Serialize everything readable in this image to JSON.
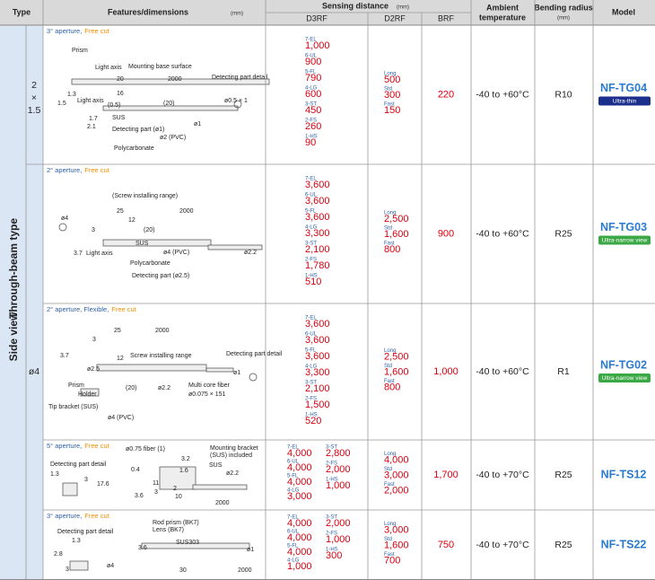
{
  "header": {
    "type": "Type",
    "features": "Features/dimensions",
    "features_unit": "(mm)",
    "sensing": "Sensing distance",
    "sensing_unit": "(mm)",
    "d3rf": "D3RF",
    "d2rf": "D2RF",
    "brf": "BRF",
    "temperature": [
      "Ambient",
      "temperature"
    ],
    "bending": "Bending radius",
    "bending_unit": "(mm)",
    "model": "Model"
  },
  "type_band": {
    "view": "Side view",
    "kind": "Through-beam type"
  },
  "sizes": [
    {
      "lines": [
        "2",
        "×",
        "1.5"
      ]
    },
    {
      "lines": [
        "ø4"
      ]
    }
  ],
  "rows": [
    {
      "aperture": "3° aperture,",
      "cut": "Free cut",
      "labels": [
        "Prism",
        "Light axis",
        "Mounting base surface",
        "20",
        "2000",
        "Detecting part detail",
        "ø0.5 × 1",
        "1.3",
        "1.5",
        "Light axis",
        "16",
        "(0.5)",
        "(20)",
        "SUS",
        "1.7",
        "2.1",
        "Detecting part (ø1)",
        "ø1",
        "ø2 (PVC)",
        "Polycarbonate"
      ],
      "d3rf": [
        [
          {
            "mode": "7-EL",
            "value": "1,000"
          },
          {
            "mode": "6-UL",
            "value": "900"
          },
          {
            "mode": "5-FL",
            "value": "790"
          },
          {
            "mode": "4-LG",
            "value": "600"
          },
          {
            "mode": "3-ST",
            "value": "450"
          },
          {
            "mode": "2-FS",
            "value": "260"
          },
          {
            "mode": "1-HS",
            "value": "90"
          }
        ]
      ],
      "d2rf": [
        {
          "mode": "Long",
          "value": "500"
        },
        {
          "mode": "Std",
          "value": "300"
        },
        {
          "mode": "Fast",
          "value": "150"
        }
      ],
      "brf": "220",
      "temperature": "-40 to +60°C",
      "radius": "R10",
      "model": "NF-TG04",
      "badge": "Ultra-thin",
      "badge_color": "#1c2f8c"
    },
    {
      "aperture": "2° aperture,",
      "cut": "Free cut",
      "labels": [
        "(Screw installing range)",
        "25",
        "12",
        "2000",
        "ø4",
        "3",
        "3.7",
        "Light axis",
        "(20)",
        "SUS",
        "ø4 (PVC)",
        "Polycarbonate",
        "Detecting part (ø2.5)",
        "ø2.2"
      ],
      "d3rf": [
        [
          {
            "mode": "7-EL",
            "value": "3,600"
          },
          {
            "mode": "6-UL",
            "value": "3,600"
          },
          {
            "mode": "5-FL",
            "value": "3,600"
          },
          {
            "mode": "4-LG",
            "value": "3,300"
          },
          {
            "mode": "3-ST",
            "value": "2,100"
          },
          {
            "mode": "2-FS",
            "value": "1,780"
          },
          {
            "mode": "1-HS",
            "value": "510"
          }
        ]
      ],
      "d2rf": [
        {
          "mode": "Long",
          "value": "2,500"
        },
        {
          "mode": "Std",
          "value": "1,600"
        },
        {
          "mode": "Fast",
          "value": "800"
        }
      ],
      "brf": "900",
      "temperature": "-40 to +60°C",
      "radius": "R25",
      "model": "NF-TG03",
      "badge": "Ultra-narrow view",
      "badge_color": "#3aa844"
    },
    {
      "aperture": "2° aperture, Flexible,",
      "cut": "Free cut",
      "labels": [
        "3",
        "25",
        "2000",
        "3.7",
        "ø2.5",
        "12",
        "Screw installing range",
        "Detecting part detail",
        "ø1",
        "Prism",
        "Holder",
        "(20)",
        "ø2.2",
        "Multi core fiber",
        "ø0.075 × 151",
        "Tip bracket (SUS)",
        "ø4 (PVC)"
      ],
      "d3rf": [
        [
          {
            "mode": "7-EL",
            "value": "3,600"
          },
          {
            "mode": "6-UL",
            "value": "3,600"
          },
          {
            "mode": "5-FL",
            "value": "3,600"
          },
          {
            "mode": "4-LG",
            "value": "3,300"
          },
          {
            "mode": "3-ST",
            "value": "2,100"
          },
          {
            "mode": "2-FS",
            "value": "1,500"
          },
          {
            "mode": "1-HS",
            "value": "520"
          }
        ]
      ],
      "d2rf": [
        {
          "mode": "Long",
          "value": "2,500"
        },
        {
          "mode": "Std",
          "value": "1,600"
        },
        {
          "mode": "Fast",
          "value": "800"
        }
      ],
      "brf": "1,000",
      "temperature": "-40 to +60°C",
      "radius": "R1",
      "model": "NF-TG02",
      "badge": "Ultra-narrow view",
      "badge_color": "#3aa844"
    },
    {
      "aperture": "5° aperture,",
      "cut": "Free cut",
      "labels": [
        "ø0.75 fiber (1)",
        "Mounting bracket",
        "(SUS) included",
        "Detecting part detail",
        "SUS",
        "1.3",
        "3",
        "0.4",
        "17.6",
        "3.2",
        "1.6",
        "ø2.2",
        "11",
        "3",
        "2",
        "3.6",
        "10",
        "2000"
      ],
      "d3rf": [
        [
          {
            "mode": "7-EL",
            "value": "4,000"
          },
          {
            "mode": "6-UL",
            "value": "4,000"
          },
          {
            "mode": "5-FL",
            "value": "4,000"
          },
          {
            "mode": "4-LG",
            "value": "3,000"
          }
        ],
        [
          {
            "mode": "3-ST",
            "value": "2,800"
          },
          {
            "mode": "2-FS",
            "value": "2,000"
          },
          {
            "mode": "1-HS",
            "value": "1,000"
          }
        ]
      ],
      "d2rf": [
        {
          "mode": "Long",
          "value": "4,000"
        },
        {
          "mode": "Std",
          "value": "3,000"
        },
        {
          "mode": "Fast",
          "value": "2,000"
        }
      ],
      "brf": "1,700",
      "temperature": "-40 to +70°C",
      "radius": "R25",
      "model": "NF-TS12"
    },
    {
      "aperture": "3° aperture,",
      "cut": "Free cut",
      "labels": [
        "Detecting part detail",
        "1.3",
        "2.8",
        "3",
        "ø4",
        "Rod prism (BK7)",
        "Lens (BK7)",
        "SUS303",
        "3.6",
        "ø1",
        "30",
        "2000"
      ],
      "d3rf": [
        [
          {
            "mode": "7-EL",
            "value": "4,000"
          },
          {
            "mode": "6-UL",
            "value": "4,000"
          },
          {
            "mode": "5-FL",
            "value": "4,000"
          },
          {
            "mode": "4-LG",
            "value": "1,000"
          }
        ],
        [
          {
            "mode": "3-ST",
            "value": "2,000"
          },
          {
            "mode": "2-FS",
            "value": "1,000"
          },
          {
            "mode": "1-HS",
            "value": "300"
          }
        ]
      ],
      "d2rf": [
        {
          "mode": "Long",
          "value": "3,000"
        },
        {
          "mode": "Std",
          "value": "1,600"
        },
        {
          "mode": "Fast",
          "value": "700"
        }
      ],
      "brf": "750",
      "temperature": "-40 to +70°C",
      "radius": "R25",
      "model": "NF-TS22"
    }
  ]
}
